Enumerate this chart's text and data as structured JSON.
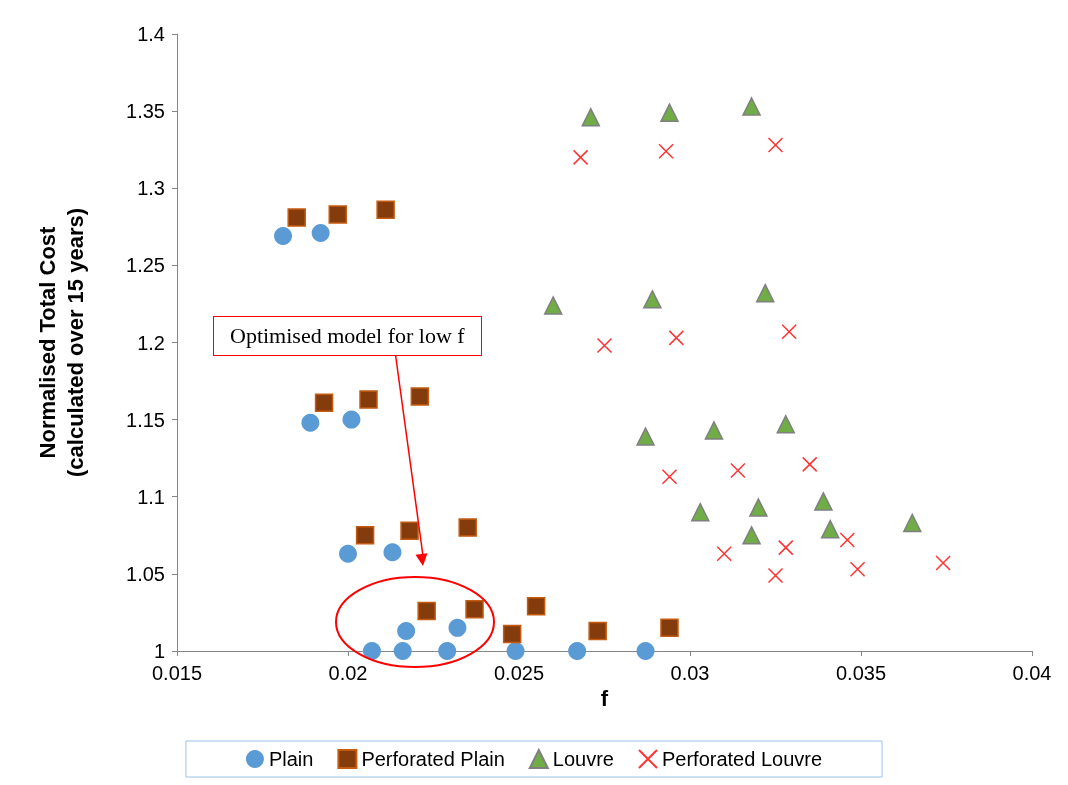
{
  "chart_data": {
    "type": "scatter",
    "xlabel": "f",
    "ylabel": "Normalised Total Cost\n(calculated over 15 years)",
    "xlim": [
      0.015,
      0.04
    ],
    "xticks": [
      0.015,
      0.02,
      0.025,
      0.03,
      0.035,
      0.04
    ],
    "ylim": [
      1,
      1.4
    ],
    "yticks": [
      1,
      1.05,
      1.1,
      1.15,
      1.2,
      1.25,
      1.3,
      1.35,
      1.4
    ],
    "grid": false,
    "legend": "bottom",
    "annotations": [
      "Optimised model for low f"
    ],
    "series": [
      {
        "name": "Plain",
        "color": "#5b9bd5",
        "marker": "circle",
        "x": [
          0.0181,
          0.0192,
          0.0189,
          0.0201,
          0.02,
          0.0213,
          0.0207,
          0.0216,
          0.0217,
          0.0229,
          0.0232,
          0.0249,
          0.0267,
          0.0287
        ],
        "values": [
          1.269,
          1.271,
          1.148,
          1.15,
          1.063,
          1.064,
          1.0,
          1.0,
          1.013,
          1.0,
          1.015,
          1.0,
          1.0,
          1.0
        ]
      },
      {
        "name": "Perforated Plain",
        "color": "#843c0c",
        "marker": "square",
        "x": [
          0.0185,
          0.0197,
          0.0211,
          0.0193,
          0.0206,
          0.0221,
          0.0205,
          0.0218,
          0.0235,
          0.0223,
          0.0237,
          0.0255,
          0.0248,
          0.0273,
          0.0294
        ],
        "values": [
          1.281,
          1.283,
          1.286,
          1.161,
          1.163,
          1.165,
          1.075,
          1.078,
          1.08,
          1.026,
          1.027,
          1.029,
          1.011,
          1.013,
          1.015
        ]
      },
      {
        "name": "Louvre",
        "color": "#70ad47",
        "marker": "triangle",
        "x": [
          0.0271,
          0.0294,
          0.0318,
          0.026,
          0.0289,
          0.0322,
          0.0287,
          0.0307,
          0.0328,
          0.0303,
          0.032,
          0.0318,
          0.0339,
          0.0341,
          0.0365
        ],
        "values": [
          1.346,
          1.349,
          1.353,
          1.224,
          1.228,
          1.232,
          1.139,
          1.143,
          1.147,
          1.09,
          1.093,
          1.075,
          1.097,
          1.079,
          1.083
        ]
      },
      {
        "name": "Perforated Louvre",
        "color": "#ff0000",
        "marker": "cross",
        "x": [
          0.0268,
          0.0293,
          0.0325,
          0.0275,
          0.0296,
          0.0329,
          0.0294,
          0.0314,
          0.0335,
          0.031,
          0.0328,
          0.0325,
          0.0346,
          0.0349,
          0.0374
        ],
        "values": [
          1.32,
          1.324,
          1.328,
          1.198,
          1.203,
          1.207,
          1.113,
          1.117,
          1.121,
          1.063,
          1.067,
          1.049,
          1.072,
          1.053,
          1.057
        ]
      }
    ]
  }
}
